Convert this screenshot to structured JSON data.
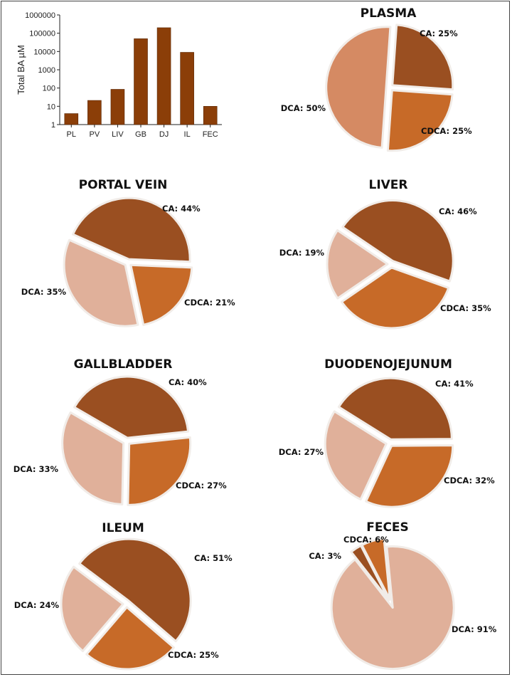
{
  "colors": {
    "CA": "#9a4f21",
    "CDCA": "#c76a28",
    "DCA_light": "#e0b09a",
    "DCA_plasma": "#d58a63",
    "bar": "#8b3e08",
    "separator": "#f1ece8"
  },
  "chart_data": [
    {
      "type": "bar",
      "title": "",
      "xlabel": "",
      "ylabel": "Total BA µM",
      "yscale": "log",
      "ylim": [
        1,
        1000000
      ],
      "ytick_labels": [
        "1",
        "10",
        "100",
        "1000",
        "10000",
        "100000",
        "1000000"
      ],
      "categories": [
        "PL",
        "PV",
        "LIV",
        "GB",
        "DJ",
        "IL",
        "FEC"
      ],
      "values": [
        4,
        21,
        85,
        50000,
        200000,
        9000,
        10
      ]
    },
    {
      "type": "pie",
      "title": "PLASMA",
      "slices": [
        {
          "name": "CA",
          "label": "CA: 25%",
          "value": 25
        },
        {
          "name": "CDCA",
          "label": "CDCA: 25%",
          "value": 25
        },
        {
          "name": "DCA",
          "label": "DCA: 50%",
          "value": 50
        }
      ]
    },
    {
      "type": "pie",
      "title": "PORTAL VEIN",
      "slices": [
        {
          "name": "CA",
          "label": "CA: 44%",
          "value": 44
        },
        {
          "name": "CDCA",
          "label": "CDCA: 21%",
          "value": 21
        },
        {
          "name": "DCA",
          "label": "DCA: 35%",
          "value": 35
        }
      ]
    },
    {
      "type": "pie",
      "title": "LIVER",
      "slices": [
        {
          "name": "CA",
          "label": "CA: 46%",
          "value": 46
        },
        {
          "name": "CDCA",
          "label": "CDCA: 35%",
          "value": 35
        },
        {
          "name": "DCA",
          "label": "DCA: 19%",
          "value": 19
        }
      ]
    },
    {
      "type": "pie",
      "title": "GALLBLADDER",
      "slices": [
        {
          "name": "CA",
          "label": "CA: 40%",
          "value": 40
        },
        {
          "name": "CDCA",
          "label": "CDCA: 27%",
          "value": 27
        },
        {
          "name": "DCA",
          "label": "DCA: 33%",
          "value": 33
        }
      ]
    },
    {
      "type": "pie",
      "title": "DUODENOJEJUNUM",
      "slices": [
        {
          "name": "CA",
          "label": "CA: 41%",
          "value": 41
        },
        {
          "name": "CDCA",
          "label": "CDCA: 32%",
          "value": 32
        },
        {
          "name": "DCA",
          "label": "DCA: 27%",
          "value": 27
        }
      ]
    },
    {
      "type": "pie",
      "title": "ILEUM",
      "slices": [
        {
          "name": "CA",
          "label": "CA: 51%",
          "value": 51
        },
        {
          "name": "CDCA",
          "label": "CDCA: 25%",
          "value": 25
        },
        {
          "name": "DCA",
          "label": "DCA: 24%",
          "value": 24
        }
      ]
    },
    {
      "type": "pie",
      "title": "FECES",
      "slices": [
        {
          "name": "CA",
          "label": "CA: 3%",
          "value": 3
        },
        {
          "name": "CDCA",
          "label": "CDCA: 6%",
          "value": 6
        },
        {
          "name": "DCA",
          "label": "DCA: 91%",
          "value": 91
        }
      ]
    }
  ]
}
